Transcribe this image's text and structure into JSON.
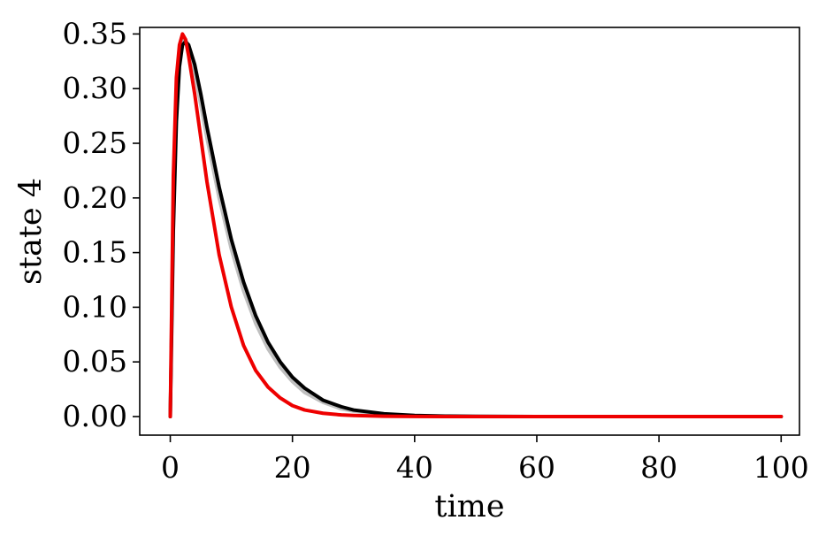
{
  "chart_data": {
    "type": "line",
    "title": "",
    "xlabel": "time",
    "ylabel": "state 4",
    "xlim": [
      -5,
      103
    ],
    "ylim": [
      -0.017,
      0.356
    ],
    "xticks": [
      0,
      20,
      40,
      60,
      80,
      100
    ],
    "yticks": [
      0.0,
      0.05,
      0.1,
      0.15,
      0.2,
      0.25,
      0.3,
      0.35
    ],
    "xtick_labels": [
      "0",
      "20",
      "40",
      "60",
      "80",
      "100"
    ],
    "ytick_labels": [
      "0.00",
      "0.05",
      "0.10",
      "0.15",
      "0.20",
      "0.25",
      "0.30",
      "0.35"
    ],
    "grid": false,
    "series": [
      {
        "color": "#bfbfbf",
        "x": [
          0,
          0.5,
          1,
          1.5,
          2,
          2.5,
          3,
          4,
          5,
          6,
          8,
          10,
          12,
          14,
          16,
          18,
          20,
          22,
          25,
          28,
          30,
          35,
          40,
          45,
          50,
          60,
          70,
          80,
          90,
          100
        ],
        "y": [
          0.0,
          0.19,
          0.29,
          0.33,
          0.345,
          0.345,
          0.338,
          0.315,
          0.285,
          0.255,
          0.2,
          0.153,
          0.115,
          0.085,
          0.062,
          0.045,
          0.032,
          0.022,
          0.013,
          0.007,
          0.005,
          0.002,
          0.0008,
          0.0003,
          0.0001,
          0.0,
          0.0,
          0.0,
          0.0,
          0.0
        ]
      },
      {
        "color": "#000000",
        "x": [
          0,
          0.5,
          1,
          1.5,
          2,
          2.5,
          3,
          4,
          5,
          6,
          8,
          10,
          12,
          14,
          16,
          18,
          20,
          22,
          25,
          28,
          30,
          35,
          40,
          45,
          50,
          60,
          70,
          80,
          90,
          100
        ],
        "y": [
          0.0,
          0.17,
          0.27,
          0.32,
          0.34,
          0.343,
          0.34,
          0.322,
          0.295,
          0.265,
          0.21,
          0.162,
          0.123,
          0.092,
          0.068,
          0.05,
          0.036,
          0.026,
          0.015,
          0.009,
          0.006,
          0.0025,
          0.001,
          0.0004,
          0.0002,
          0.0,
          0.0,
          0.0,
          0.0,
          0.0
        ]
      },
      {
        "color": "#ee0000",
        "x": [
          0,
          0.5,
          1,
          1.5,
          2,
          2.5,
          3,
          4,
          5,
          6,
          8,
          10,
          12,
          14,
          16,
          18,
          20,
          22,
          25,
          28,
          30,
          35,
          40,
          45,
          50,
          60,
          70,
          80,
          90,
          100
        ],
        "y": [
          0.0,
          0.22,
          0.31,
          0.34,
          0.35,
          0.345,
          0.33,
          0.295,
          0.255,
          0.215,
          0.148,
          0.1,
          0.065,
          0.042,
          0.027,
          0.017,
          0.01,
          0.006,
          0.003,
          0.0015,
          0.001,
          0.0003,
          0.0001,
          0.0,
          0.0,
          0.0,
          0.0,
          0.0,
          0.0,
          0.0
        ]
      }
    ]
  }
}
